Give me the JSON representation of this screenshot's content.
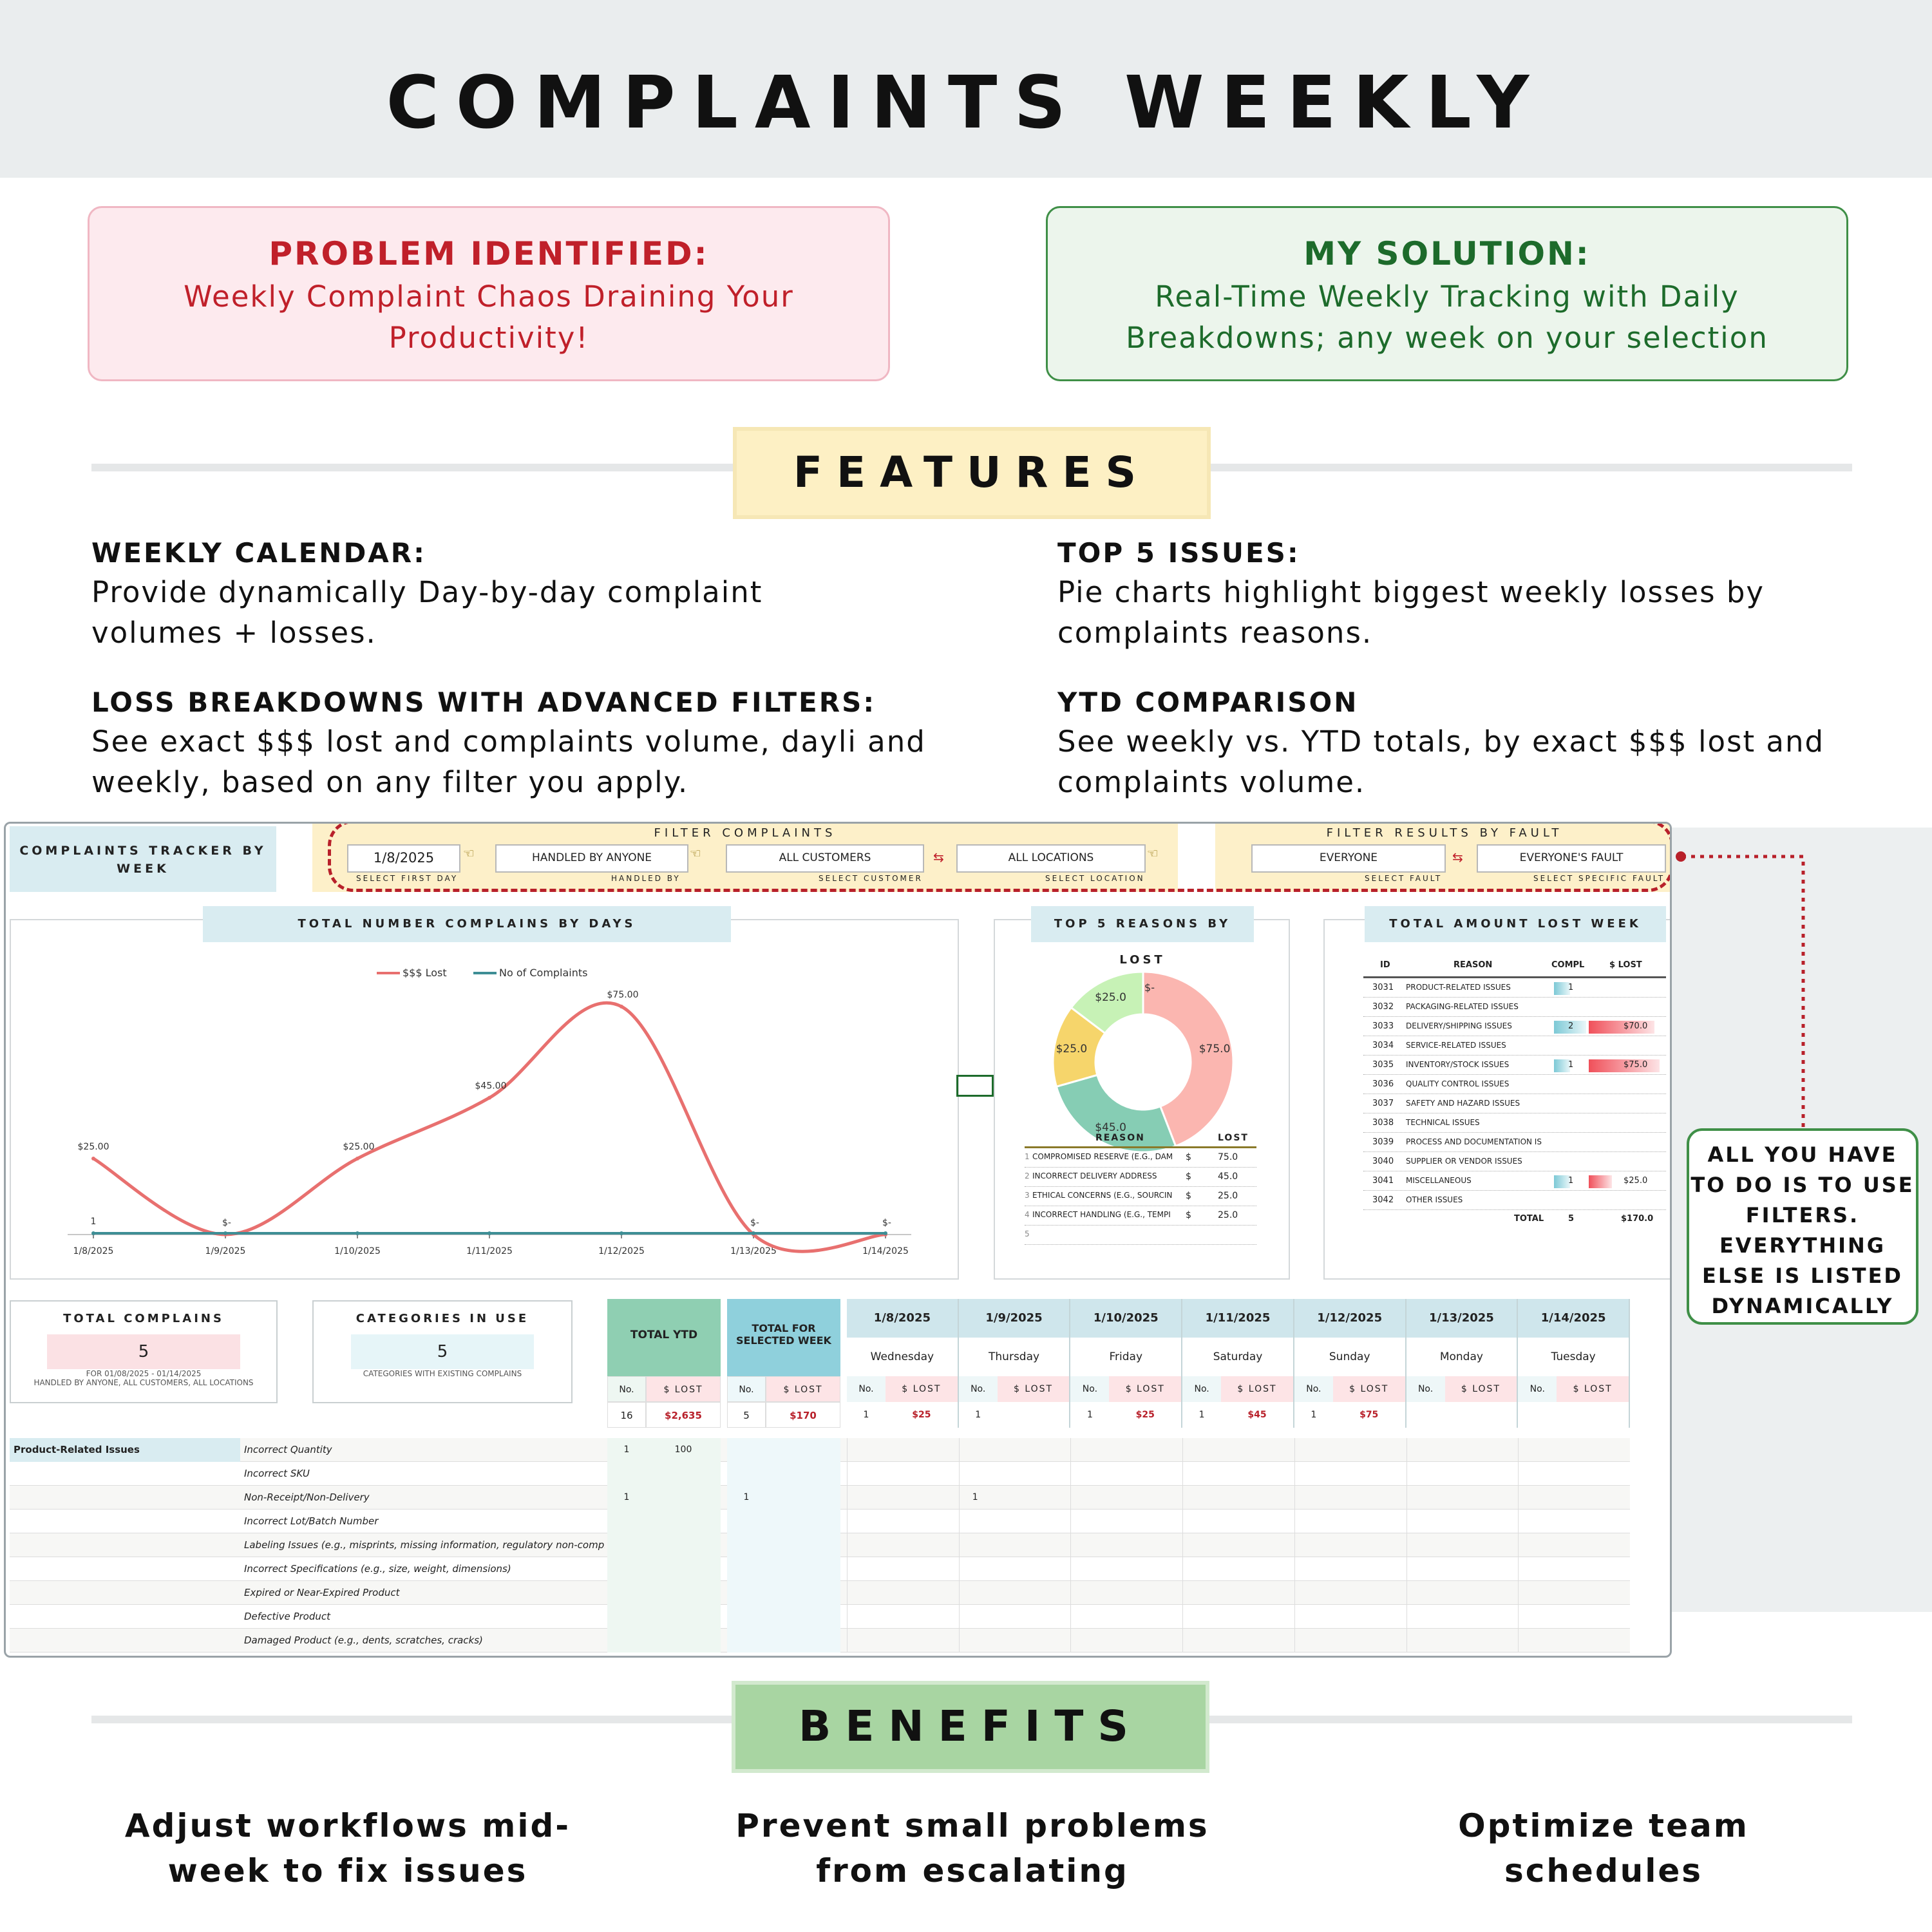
{
  "title": "COMPLAINTS WEEKLY",
  "problem": {
    "heading": "PROBLEM IDENTIFIED:",
    "text": "Weekly Complaint Chaos Draining Your Productivity!"
  },
  "solution": {
    "heading": "MY SOLUTION:",
    "text": "Real-Time Weekly Tracking with Daily Breakdowns; any week on your selection"
  },
  "features": {
    "heading": "FEATURES",
    "items": [
      {
        "title": "WEEKLY CALENDAR:",
        "text": "Provide dynamically Day-by-day complaint volumes + losses."
      },
      {
        "title": "TOP 5 ISSUES:",
        "text": "Pie charts highlight biggest weekly losses by complaints reasons."
      },
      {
        "title": "LOSS BREAKDOWNS WITH ADVANCED FILTERS:",
        "text": "See exact $$$ lost and complaints volume, dayli and weekly, based on any filter you apply."
      },
      {
        "title": "YTD COMPARISON",
        "text": "See weekly vs. YTD totals, by exact $$$ lost and complaints volume."
      }
    ]
  },
  "dashboard": {
    "tracker_label": "COMPLAINTS TRACKER BY WEEK",
    "filter_complaints": "FILTER COMPLAINTS",
    "filter_fault": "FILTER RESULTS BY FAULT",
    "filters": [
      {
        "value": "1/8/2025",
        "label": "SELECT FIRST DAY"
      },
      {
        "value": "HANDLED BY ANYONE",
        "label": "HANDLED BY"
      },
      {
        "value": "ALL CUSTOMERS",
        "label": "SELECT CUSTOMER"
      },
      {
        "value": "ALL LOCATIONS",
        "label": "SELECT LOCATION"
      },
      {
        "value": "EVERYONE",
        "label": "SELECT FAULT"
      },
      {
        "value": "EVERYONE'S FAULT",
        "label": "SELECT SPECIFIC FAULT"
      }
    ],
    "line_chart_title": "TOTAL NUMBER COMPLAINS BY DAYS",
    "pie_title": "TOP 5 REASONS BY LOST",
    "lost_title": "TOTAL AMOUNT LOST WEEK",
    "pie_table": {
      "headers": [
        "REASON",
        "LOST"
      ],
      "rows": [
        {
          "n": "1",
          "reason": "COMPROMISED RESERVE (E.G., DAM",
          "cur": "$",
          "lost": "75.0"
        },
        {
          "n": "2",
          "reason": "INCORRECT DELIVERY ADDRESS",
          "cur": "$",
          "lost": "45.0"
        },
        {
          "n": "3",
          "reason": "ETHICAL CONCERNS (E.G., SOURCIN",
          "cur": "$",
          "lost": "25.0"
        },
        {
          "n": "4",
          "reason": "INCORRECT HANDLING (E.G., TEMPI",
          "cur": "$",
          "lost": "25.0"
        },
        {
          "n": "5",
          "reason": "",
          "cur": "",
          "lost": ""
        }
      ]
    },
    "lost_table": {
      "headers": [
        "ID",
        "REASON",
        "COMPL",
        "$ LOST"
      ],
      "rows": [
        {
          "id": "3031",
          "reason": "PRODUCT-RELATED ISSUES",
          "compl": "1",
          "lost": "",
          "cf": 0.5,
          "lf": 0
        },
        {
          "id": "3032",
          "reason": "PACKAGING-RELATED ISSUES",
          "compl": "",
          "lost": "",
          "cf": 0,
          "lf": 0
        },
        {
          "id": "3033",
          "reason": "DELIVERY/SHIPPING ISSUES",
          "compl": "2",
          "lost": "$70.0",
          "cf": 1,
          "lf": 0.93
        },
        {
          "id": "3034",
          "reason": "SERVICE-RELATED ISSUES",
          "compl": "",
          "lost": "",
          "cf": 0,
          "lf": 0
        },
        {
          "id": "3035",
          "reason": "INVENTORY/STOCK ISSUES",
          "compl": "1",
          "lost": "$75.0",
          "cf": 0.5,
          "lf": 1
        },
        {
          "id": "3036",
          "reason": "QUALITY CONTROL ISSUES",
          "compl": "",
          "lost": "",
          "cf": 0,
          "lf": 0
        },
        {
          "id": "3037",
          "reason": "SAFETY AND HAZARD ISSUES",
          "compl": "",
          "lost": "",
          "cf": 0,
          "lf": 0
        },
        {
          "id": "3038",
          "reason": "TECHNICAL ISSUES",
          "compl": "",
          "lost": "",
          "cf": 0,
          "lf": 0
        },
        {
          "id": "3039",
          "reason": "PROCESS AND DOCUMENTATION IS",
          "compl": "",
          "lost": "",
          "cf": 0,
          "lf": 0
        },
        {
          "id": "3040",
          "reason": "SUPPLIER OR VENDOR ISSUES",
          "compl": "",
          "lost": "",
          "cf": 0,
          "lf": 0
        },
        {
          "id": "3041",
          "reason": "MISCELLANEOUS",
          "compl": "1",
          "lost": "$25.0",
          "cf": 0.5,
          "lf": 0.33
        },
        {
          "id": "3042",
          "reason": "OTHER ISSUES",
          "compl": "",
          "lost": "",
          "cf": 0,
          "lf": 0
        }
      ],
      "total_label": "TOTAL",
      "total_compl": "5",
      "total_lost": "$170.0"
    },
    "kpi_total": {
      "title": "TOTAL COMPLAINS",
      "value": "5",
      "sub1": "FOR 01/08/2025 - 01/14/2025",
      "sub2": "HANDLED BY ANYONE, ALL CUSTOMERS, ALL LOCATIONS"
    },
    "kpi_categories": {
      "title": "CATEGORIES IN USE",
      "value": "5",
      "sub": "CATEGORIES WITH EXISTING COMPLAINS"
    },
    "ytd": {
      "title": "TOTAL YTD",
      "no_label": "No.",
      "lost_label": "$ LOST",
      "no": "16",
      "lost": "$2,635"
    },
    "week": {
      "title": "TOTAL FOR SELECTED WEEK",
      "no_label": "No.",
      "lost_label": "$ LOST",
      "no": "5",
      "lost": "$170"
    },
    "days": [
      {
        "date": "1/8/2025",
        "day": "Wednesday",
        "no": "1",
        "lost": "$25"
      },
      {
        "date": "1/9/2025",
        "day": "Thursday",
        "no": "1",
        "lost": ""
      },
      {
        "date": "1/10/2025",
        "day": "Friday",
        "no": "1",
        "lost": "$25"
      },
      {
        "date": "1/11/2025",
        "day": "Saturday",
        "no": "1",
        "lost": "$45"
      },
      {
        "date": "1/12/2025",
        "day": "Sunday",
        "no": "1",
        "lost": "$75"
      },
      {
        "date": "1/13/2025",
        "day": "Monday",
        "no": "",
        "lost": ""
      },
      {
        "date": "1/14/2025",
        "day": "Tuesday",
        "no": "",
        "lost": ""
      }
    ],
    "day_no_label": "No.",
    "day_lost_label": "$ LOST",
    "category": "Product-Related Issues",
    "subcategories": [
      {
        "name": "Incorrect Quantity",
        "ytd_no": "1",
        "ytd_lost": "100",
        "wk_no": "",
        "day": {}
      },
      {
        "name": "Incorrect SKU",
        "ytd_no": "",
        "ytd_lost": "",
        "wk_no": "",
        "day": {}
      },
      {
        "name": "Non-Receipt/Non-Delivery",
        "ytd_no": "1",
        "ytd_lost": "",
        "wk_no": "1",
        "day": {
          "d2": "1"
        }
      },
      {
        "name": "Incorrect Lot/Batch Number",
        "ytd_no": "",
        "ytd_lost": "",
        "wk_no": "",
        "day": {}
      },
      {
        "name": "Labeling Issues (e.g., misprints, missing information, regulatory non-compli",
        "ytd_no": "",
        "ytd_lost": "",
        "wk_no": "",
        "day": {}
      },
      {
        "name": "Incorrect Specifications (e.g., size, weight, dimensions)",
        "ytd_no": "",
        "ytd_lost": "",
        "wk_no": "",
        "day": {}
      },
      {
        "name": "Expired or Near-Expired Product",
        "ytd_no": "",
        "ytd_lost": "",
        "wk_no": "",
        "day": {}
      },
      {
        "name": "Defective Product",
        "ytd_no": "",
        "ytd_lost": "",
        "wk_no": "",
        "day": {}
      },
      {
        "name": "Damaged Product (e.g., dents, scratches, cracks)",
        "ytd_no": "",
        "ytd_lost": "",
        "wk_no": "",
        "day": {}
      }
    ]
  },
  "chart_data": [
    {
      "type": "line",
      "title": "TOTAL NUMBER COMPLAINS BY DAYS",
      "x": [
        "1/8/2025",
        "1/9/2025",
        "1/10/2025",
        "1/11/2025",
        "1/12/2025",
        "1/13/2025",
        "1/14/2025"
      ],
      "series": [
        {
          "name": "$$$ Lost",
          "color": "#e8706f",
          "values": [
            25,
            0,
            25,
            45,
            75,
            0,
            0
          ],
          "labels": [
            "$25.00",
            "$-",
            "$25.00",
            "$45.00",
            "$75.00",
            "$-",
            "$-"
          ]
        },
        {
          "name": "No of Complaints",
          "color": "#3e8e95",
          "values": [
            1,
            1,
            1,
            1,
            1,
            0,
            0
          ],
          "labels": [
            "1",
            "",
            "",
            "",
            "",
            "",
            ""
          ]
        }
      ],
      "grid": false,
      "legend": "top-center"
    },
    {
      "type": "pie",
      "title": "TOP 5 REASONS BY LOST",
      "categories": [
        "COMPROMISED RESERVE (E.G., DAM",
        "INCORRECT DELIVERY ADDRESS",
        "ETHICAL CONCERNS (E.G., SOURCIN",
        "INCORRECT HANDLING (E.G., TEMPI",
        ""
      ],
      "values": [
        75,
        45,
        25,
        25,
        0
      ],
      "labels": [
        "$75.0",
        "$45.0",
        "$25.0",
        "$25.0",
        "$-"
      ],
      "colors": [
        "#fbb6b0",
        "#86cdb4",
        "#f6d56b",
        "#c7f2b6",
        "#e8e8e8"
      ]
    }
  ],
  "callout": "ALL YOU HAVE TO DO IS TO USE FILTERS. EVERYTHING ELSE IS LISTED DYNAMICALLY",
  "benefits": {
    "heading": "BENEFITS",
    "items": [
      "Adjust workflows mid-week to fix issues",
      "Prevent small problems from escalating",
      "Optimize team schedules"
    ]
  }
}
